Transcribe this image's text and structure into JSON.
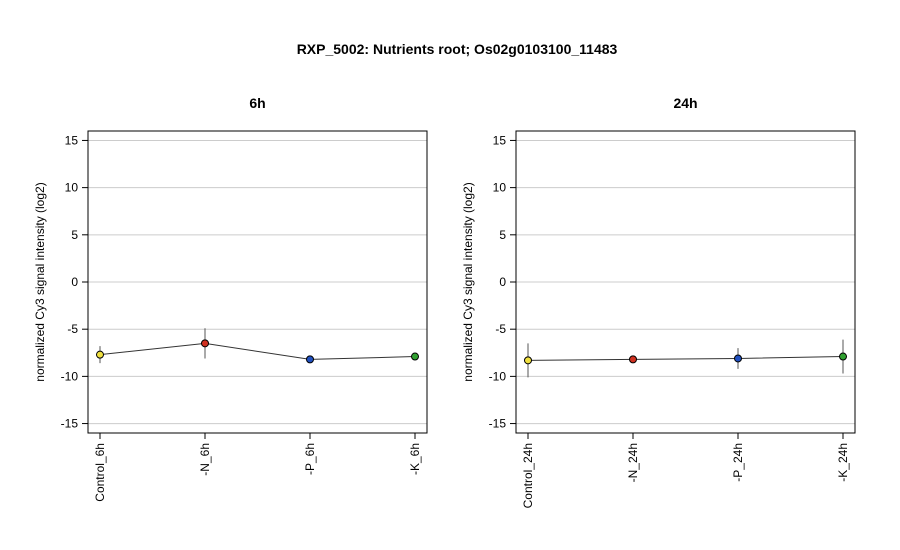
{
  "figure_title": "RXP_5002: Nutrients root; Os02g0103100_11483",
  "chart_data": [
    {
      "type": "line",
      "title": "6h",
      "ylabel": "normalized Cy3 signal intensity (log2)",
      "ylim": [
        -16,
        16
      ],
      "yticks": [
        -15,
        -10,
        -5,
        0,
        5,
        10,
        15
      ],
      "grid": true,
      "categories": [
        "Control_6h",
        "-N_6h",
        "-P_6h",
        "-K_6h"
      ],
      "values": [
        -7.7,
        -6.5,
        -8.2,
        -7.9
      ],
      "errors": [
        0.9,
        1.6,
        0.15,
        0.15
      ],
      "point_colors": [
        "#f0e040",
        "#d03020",
        "#2050c0",
        "#30a030"
      ]
    },
    {
      "type": "line",
      "title": "24h",
      "ylabel": "normalized Cy3 signal intensity (log2)",
      "ylim": [
        -16,
        16
      ],
      "yticks": [
        -15,
        -10,
        -5,
        0,
        5,
        10,
        15
      ],
      "grid": true,
      "categories": [
        "Control_24h",
        "-N_24h",
        "-P_24h",
        "-K_24h"
      ],
      "values": [
        -8.3,
        -8.2,
        -8.1,
        -7.9
      ],
      "errors": [
        1.8,
        0.15,
        1.1,
        1.8
      ],
      "point_colors": [
        "#f0e040",
        "#d03020",
        "#2050c0",
        "#30a030"
      ]
    }
  ]
}
